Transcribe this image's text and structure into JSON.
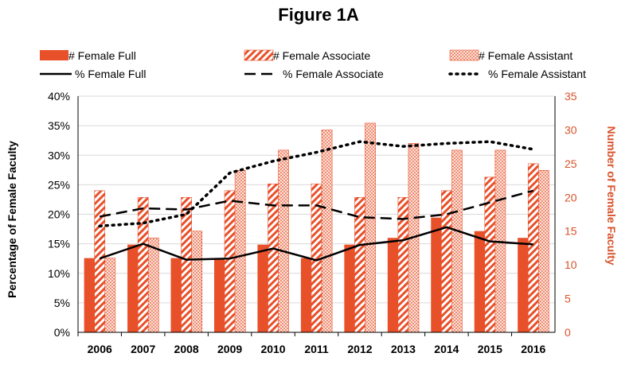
{
  "chart_data": {
    "type": "bar",
    "title": "Figure 1A",
    "categories": [
      "2006",
      "2007",
      "2008",
      "2009",
      "2010",
      "2011",
      "2012",
      "2013",
      "2014",
      "2015",
      "2016"
    ],
    "bar_series": [
      {
        "name": "# Female Full",
        "pattern": "solid",
        "values": [
          11,
          13,
          11,
          11,
          13,
          11,
          13,
          14,
          17,
          15,
          14
        ]
      },
      {
        "name": "# Female Associate",
        "pattern": "diagonal",
        "values": [
          21,
          20,
          20,
          21,
          22,
          22,
          20,
          20,
          21,
          23,
          25
        ]
      },
      {
        "name": "# Female Assistant",
        "pattern": "dotted",
        "values": [
          11,
          14,
          15,
          24,
          27,
          30,
          31,
          28,
          27,
          27,
          24
        ]
      }
    ],
    "line_series": [
      {
        "name": "% Female Full",
        "style": "solid",
        "values": [
          12.5,
          15.0,
          12.3,
          12.5,
          14.2,
          12.2,
          14.8,
          15.6,
          17.8,
          15.4,
          14.9
        ]
      },
      {
        "name": "% Female Associate",
        "style": "dashed",
        "values": [
          19.6,
          21.0,
          20.8,
          22.3,
          21.5,
          21.5,
          19.5,
          19.2,
          20.0,
          22.0,
          24.0
        ]
      },
      {
        "name": "% Female Assistant",
        "style": "dotted",
        "values": [
          18.0,
          18.5,
          20.0,
          27.0,
          29.0,
          30.5,
          32.3,
          31.5,
          32.0,
          32.3,
          31.0
        ]
      }
    ],
    "left_axis": {
      "label": "Percentage of Female Faculty",
      "min": 0,
      "max": 40,
      "step": 5,
      "ticks": [
        "0%",
        "5%",
        "10%",
        "15%",
        "20%",
        "25%",
        "30%",
        "35%",
        "40%"
      ]
    },
    "right_axis": {
      "label": "Number of Female Faculty",
      "min": 0,
      "max": 35,
      "step": 5,
      "ticks": [
        "0",
        "5",
        "10",
        "15",
        "20",
        "25",
        "30",
        "35"
      ]
    },
    "grid": true,
    "legend_position": "top",
    "colors": {
      "bar": "#e8502a",
      "bar_light": "#f0a58f",
      "line": "#000000",
      "right_axis": "#d9532c",
      "grid": "#d9d9d9"
    }
  }
}
